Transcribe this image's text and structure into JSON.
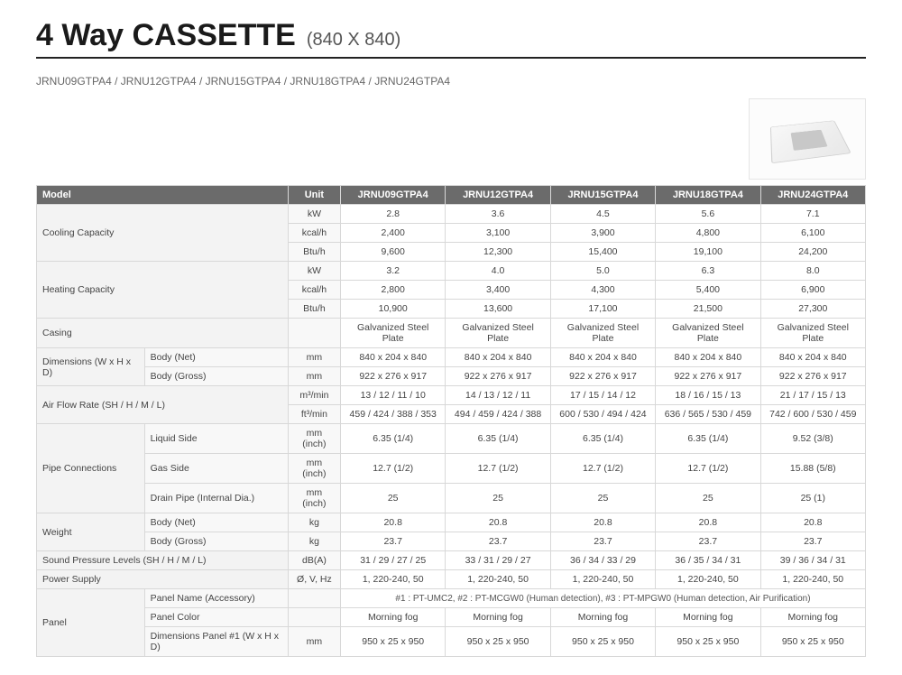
{
  "header": {
    "title": "4 Way CASSETTE",
    "subtitle": "(840 X 840)",
    "model_list": "JRNU09GTPA4 / JRNU12GTPA4 / JRNU15GTPA4 / JRNU18GTPA4 / JRNU24GTPA4"
  },
  "table": {
    "columns": [
      "Model",
      "Unit",
      "JRNU09GTPA4",
      "JRNU12GTPA4",
      "JRNU15GTPA4",
      "JRNU18GTPA4",
      "JRNU24GTPA4"
    ],
    "rows": [
      {
        "group": "Cooling Capacity",
        "sub": "",
        "unit": "kW",
        "v": [
          "2.8",
          "3.6",
          "4.5",
          "5.6",
          "7.1"
        ]
      },
      {
        "group": "",
        "sub": "",
        "unit": "kcal/h",
        "v": [
          "2,400",
          "3,100",
          "3,900",
          "4,800",
          "6,100"
        ]
      },
      {
        "group": "",
        "sub": "",
        "unit": "Btu/h",
        "v": [
          "9,600",
          "12,300",
          "15,400",
          "19,100",
          "24,200"
        ]
      },
      {
        "group": "Heating Capacity",
        "sub": "",
        "unit": "kW",
        "v": [
          "3.2",
          "4.0",
          "5.0",
          "6.3",
          "8.0"
        ]
      },
      {
        "group": "",
        "sub": "",
        "unit": "kcal/h",
        "v": [
          "2,800",
          "3,400",
          "4,300",
          "5,400",
          "6,900"
        ]
      },
      {
        "group": "",
        "sub": "",
        "unit": "Btu/h",
        "v": [
          "10,900",
          "13,600",
          "17,100",
          "21,500",
          "27,300"
        ]
      },
      {
        "group": "Casing",
        "sub": "",
        "unit": "",
        "v": [
          "Galvanized Steel Plate",
          "Galvanized Steel Plate",
          "Galvanized Steel Plate",
          "Galvanized Steel Plate",
          "Galvanized Steel Plate"
        ]
      },
      {
        "group": "Dimensions (W x H x D)",
        "sub": "Body (Net)",
        "unit": "mm",
        "v": [
          "840 x 204 x 840",
          "840 x 204 x 840",
          "840 x 204 x 840",
          "840 x 204 x 840",
          "840 x 204 x 840"
        ]
      },
      {
        "group": "",
        "sub": "Body (Gross)",
        "unit": "mm",
        "v": [
          "922 x 276 x 917",
          "922 x 276 x 917",
          "922 x 276 x 917",
          "922 x 276 x 917",
          "922 x 276 x 917"
        ]
      },
      {
        "group": "Air Flow Rate (SH / H / M / L)",
        "sub": "",
        "unit": "m³/min",
        "v": [
          "13 / 12 / 11 / 10",
          "14 / 13 / 12 / 11",
          "17 / 15 / 14 / 12",
          "18 / 16 / 15 / 13",
          "21 / 17 / 15 / 13"
        ]
      },
      {
        "group": "",
        "sub": "",
        "unit": "ft³/min",
        "v": [
          "459 / 424 / 388 / 353",
          "494 / 459 / 424 / 388",
          "600 / 530 / 494 / 424",
          "636 / 565 / 530 / 459",
          "742 / 600 / 530 / 459"
        ]
      },
      {
        "group": "Pipe Connections",
        "sub": "Liquid Side",
        "unit": "mm (inch)",
        "v": [
          "6.35 (1/4)",
          "6.35 (1/4)",
          "6.35 (1/4)",
          "6.35 (1/4)",
          "9.52 (3/8)"
        ]
      },
      {
        "group": "",
        "sub": "Gas Side",
        "unit": "mm (inch)",
        "v": [
          "12.7 (1/2)",
          "12.7 (1/2)",
          "12.7 (1/2)",
          "12.7 (1/2)",
          "15.88 (5/8)"
        ]
      },
      {
        "group": "",
        "sub": "Drain Pipe (Internal Dia.)",
        "unit": "mm (inch)",
        "v": [
          "25",
          "25",
          "25",
          "25",
          "25 (1)"
        ]
      },
      {
        "group": "Weight",
        "sub": "Body (Net)",
        "unit": "kg",
        "v": [
          "20.8",
          "20.8",
          "20.8",
          "20.8",
          "20.8"
        ]
      },
      {
        "group": "",
        "sub": "Body (Gross)",
        "unit": "kg",
        "v": [
          "23.7",
          "23.7",
          "23.7",
          "23.7",
          "23.7"
        ]
      },
      {
        "group": "Sound Pressure Levels (SH / H / M / L)",
        "sub": "",
        "unit": "dB(A)",
        "v": [
          "31 / 29 / 27 / 25",
          "33 / 31 / 29 / 27",
          "36 / 34 / 33 / 29",
          "36 / 35 / 34 / 31",
          "39 / 36 / 34 / 31"
        ]
      },
      {
        "group": "Power Supply",
        "sub": "",
        "unit": "Ø, V, Hz",
        "v": [
          "1, 220-240, 50",
          "1, 220-240, 50",
          "1, 220-240, 50",
          "1, 220-240, 50",
          "1, 220-240, 50"
        ]
      },
      {
        "group": "Panel",
        "sub": "Panel Name (Accessory)",
        "unit": "",
        "note": "#1 : PT-UMC2, #2 : PT-MCGW0 (Human detection), #3 : PT-MPGW0 (Human detection, Air Purification)"
      },
      {
        "group": "",
        "sub": "Panel Color",
        "unit": "",
        "v": [
          "Morning fog",
          "Morning fog",
          "Morning fog",
          "Morning fog",
          "Morning fog"
        ]
      },
      {
        "group": "",
        "sub": "Dimensions Panel #1 (W x H x D)",
        "unit": "mm",
        "v": [
          "950 x 25 x 950",
          "950 x 25 x 950",
          "950 x 25 x 950",
          "950 x 25 x 950",
          "950 x 25 x 950"
        ]
      }
    ]
  },
  "rowgroups": [
    {
      "start": 0,
      "span": 3,
      "label": "Cooling Capacity"
    },
    {
      "start": 3,
      "span": 3,
      "label": "Heating Capacity"
    },
    {
      "start": 6,
      "span": 1,
      "label": "Casing",
      "colspan": 2
    },
    {
      "start": 7,
      "span": 2,
      "label": "Dimensions (W x H x D)"
    },
    {
      "start": 9,
      "span": 2,
      "label": "Air Flow Rate (SH / H / M / L)"
    },
    {
      "start": 11,
      "span": 3,
      "label": "Pipe Connections"
    },
    {
      "start": 14,
      "span": 2,
      "label": "Weight"
    },
    {
      "start": 16,
      "span": 1,
      "label": "Sound Pressure Levels (SH / H / M / L)",
      "colspan": 2
    },
    {
      "start": 17,
      "span": 1,
      "label": "Power Supply",
      "colspan": 2
    },
    {
      "start": 18,
      "span": 3,
      "label": "Panel"
    }
  ]
}
